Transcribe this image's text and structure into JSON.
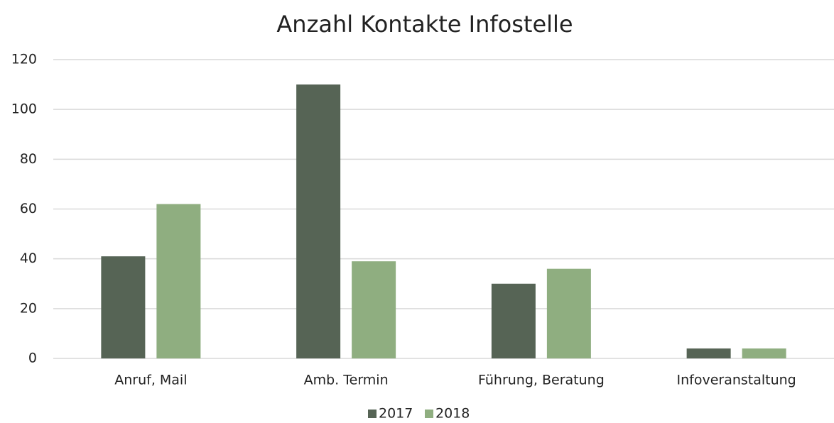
{
  "chart_data": {
    "type": "bar",
    "title": "Anzahl Kontakte Infostelle",
    "categories": [
      "Anruf, Mail",
      "Amb. Termin",
      "Führung, Beratung",
      "Infoveranstaltung"
    ],
    "series": [
      {
        "name": "2017",
        "color": "#566455",
        "values": [
          41,
          110,
          30,
          4
        ]
      },
      {
        "name": "2018",
        "color": "#8fae80",
        "values": [
          62,
          39,
          36,
          4
        ]
      }
    ],
    "ylim": [
      0,
      120
    ],
    "yticks": [
      0,
      20,
      40,
      60,
      80,
      100,
      120
    ],
    "grid": true,
    "legend": "bottom"
  }
}
